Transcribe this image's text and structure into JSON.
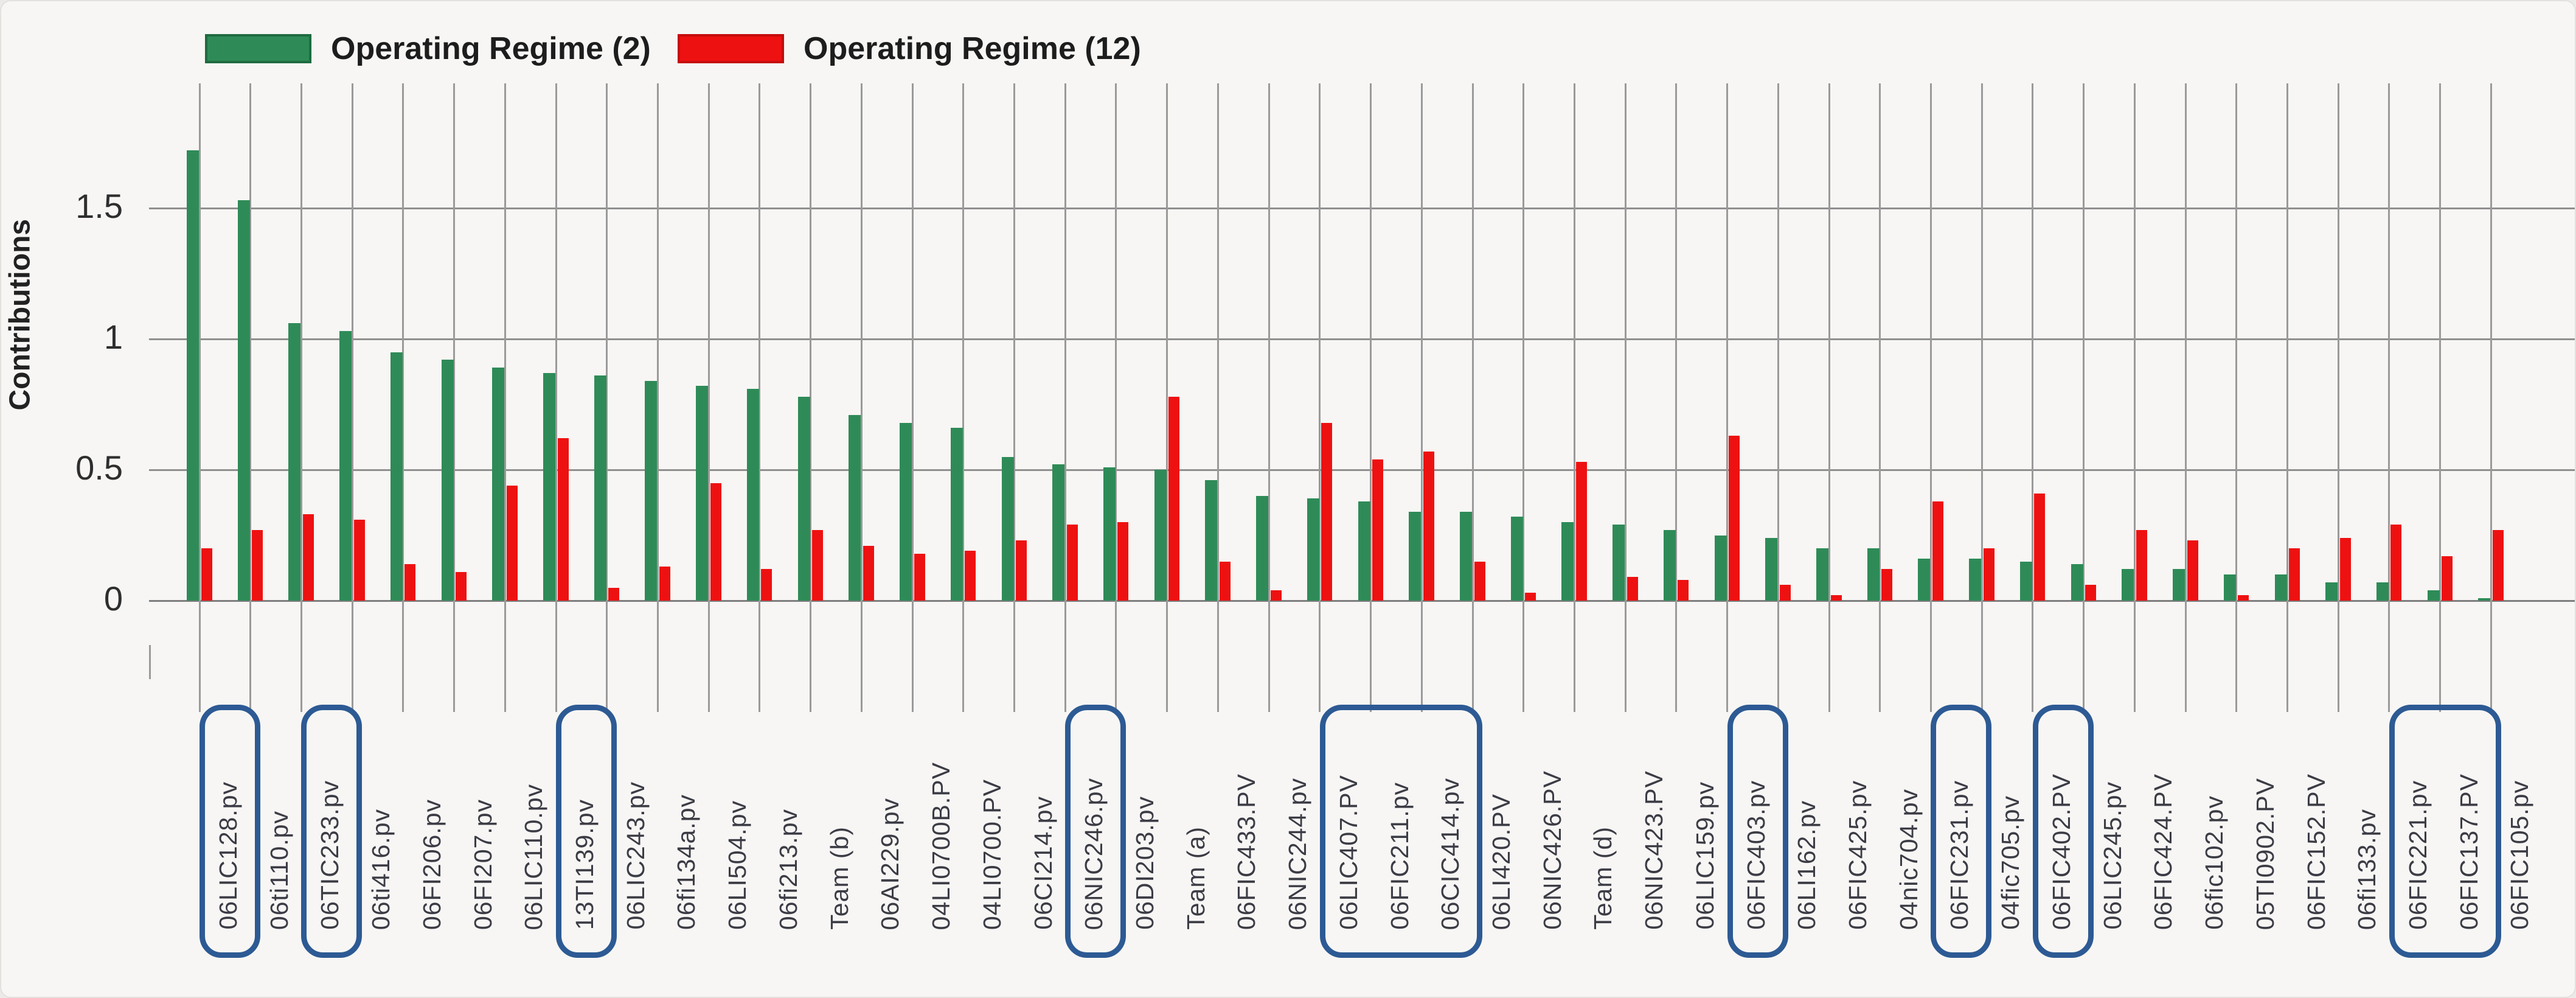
{
  "legend": {
    "items": [
      {
        "label": "Operating Regime (2)",
        "color": "#2e8b57",
        "border": "#1f6b40"
      },
      {
        "label": "Operating Regime (12)",
        "color": "#ee1111",
        "border": "#c50d0d"
      }
    ]
  },
  "y_axis": {
    "title": "Contributions",
    "tick_labels": [
      "1.5",
      "1",
      "0.5",
      "0"
    ]
  },
  "chart_data": {
    "type": "bar",
    "title": "",
    "xlabel": "",
    "ylabel": "Contributions",
    "ylim": [
      0,
      1.8
    ],
    "yticks": [
      1.5,
      1.0,
      0.5,
      0
    ],
    "grid": "on",
    "legend_position": "top-left",
    "categories": [
      "06LIC128.pv",
      "06ti110.pv",
      "06TIC233.pv",
      "06ti416.pv",
      "06FI206.pv",
      "06FI207.pv",
      "06LIC110.pv",
      "13TI139.pv",
      "06LIC243.pv",
      "06fi134a.pv",
      "06LI504.pv",
      "06fi213.pv",
      "Team (b)",
      "06AI229.pv",
      "04LI0700B.PV",
      "04LI0700.PV",
      "06CI214.pv",
      "06NIC246.pv",
      "06DI203.pv",
      "Team (a)",
      "06FIC433.PV",
      "06NIC244.pv",
      "06LIC407.PV",
      "06FIC211.pv",
      "06CIC414.pv",
      "06LI420.PV",
      "06NIC426.PV",
      "Team (d)",
      "06NIC423.PV",
      "06LIC159.pv",
      "06FIC403.pv",
      "06LI162.pv",
      "06FIC425.pv",
      "04nic704.pv",
      "06FIC231.pv",
      "04fic705.pv",
      "06FIC402.PV",
      "06LIC245.pv",
      "06FIC424.PV",
      "06fic102.pv",
      "05TI0902.PV",
      "06FIC152.PV",
      "06fi133.pv",
      "06FIC221.pv",
      "06FIC137.PV",
      "06FIC105.pv"
    ],
    "series": [
      {
        "name": "Operating Regime (2)",
        "color": "#2e8b57",
        "values": [
          1.72,
          1.53,
          1.06,
          1.03,
          0.95,
          0.92,
          0.89,
          0.87,
          0.86,
          0.84,
          0.82,
          0.81,
          0.78,
          0.71,
          0.68,
          0.66,
          0.55,
          0.52,
          0.51,
          0.5,
          0.46,
          0.4,
          0.39,
          0.38,
          0.34,
          0.34,
          0.32,
          0.3,
          0.29,
          0.27,
          0.25,
          0.24,
          0.2,
          0.2,
          0.16,
          0.16,
          0.15,
          0.14,
          0.12,
          0.12,
          0.1,
          0.1,
          0.07,
          0.07,
          0.04,
          0.01
        ]
      },
      {
        "name": "Operating Regime (12)",
        "color": "#ee1111",
        "values": [
          0.2,
          0.27,
          0.33,
          0.31,
          0.14,
          0.11,
          0.44,
          0.62,
          0.05,
          0.13,
          0.45,
          0.12,
          0.27,
          0.21,
          0.18,
          0.19,
          0.23,
          0.29,
          0.3,
          0.78,
          0.15,
          0.04,
          0.68,
          0.54,
          0.57,
          0.15,
          0.03,
          0.53,
          0.09,
          0.08,
          0.63,
          0.06,
          0.02,
          0.12,
          0.38,
          0.2,
          0.41,
          0.06,
          0.27,
          0.23,
          0.02,
          0.2,
          0.24,
          0.29,
          0.17,
          0.27
        ]
      }
    ],
    "highlighted_label_groups": [
      [
        "06LIC128.pv"
      ],
      [
        "06TIC233.pv"
      ],
      [
        "13TI139.pv"
      ],
      [
        "06NIC246.pv"
      ],
      [
        "06LIC407.PV",
        "06FIC211.pv",
        "06CIC414.pv"
      ],
      [
        "06FIC403.pv"
      ],
      [
        "06FIC231.pv"
      ],
      [
        "06FIC402.PV"
      ],
      [
        "06FIC221.pv",
        "06FIC137.PV"
      ]
    ],
    "highlight_index_ranges": [
      [
        0,
        0
      ],
      [
        2,
        2
      ],
      [
        7,
        7
      ],
      [
        17,
        17
      ],
      [
        22,
        24
      ],
      [
        30,
        30
      ],
      [
        34,
        34
      ],
      [
        36,
        36
      ],
      [
        43,
        44
      ]
    ],
    "highlight_color": "#2d5a94",
    "grid_color": "#9a9a9a"
  }
}
